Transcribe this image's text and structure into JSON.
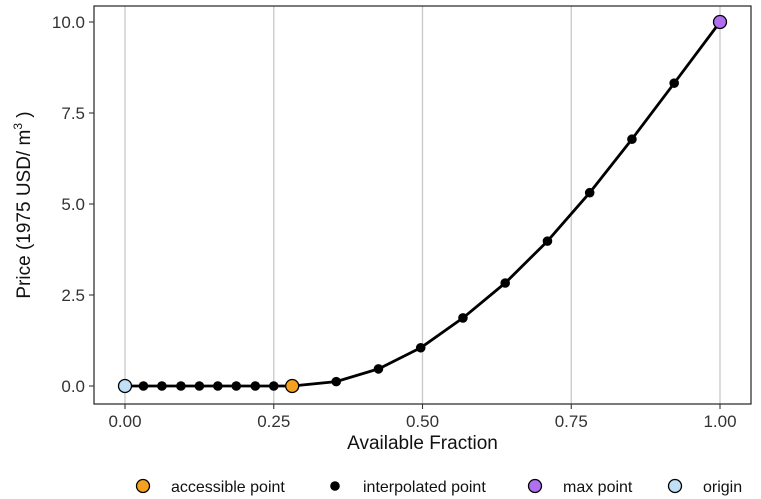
{
  "chart_data": {
    "type": "line",
    "xlabel": "Available Fraction",
    "ylabel": {
      "prefix": "Price (1975 USD/ m",
      "sup": "3",
      "suffix": " )"
    },
    "xlim": [
      0,
      1
    ],
    "ylim": [
      0,
      10
    ],
    "xticks": [
      {
        "value": 0.0,
        "label": "0.00"
      },
      {
        "value": 0.25,
        "label": "0.25"
      },
      {
        "value": 0.5,
        "label": "0.50"
      },
      {
        "value": 0.75,
        "label": "0.75"
      },
      {
        "value": 1.0,
        "label": "1.00"
      }
    ],
    "yticks": [
      {
        "value": 0.0,
        "label": "0.0"
      },
      {
        "value": 2.5,
        "label": "2.5"
      },
      {
        "value": 5.0,
        "label": "5.0"
      },
      {
        "value": 7.5,
        "label": "7.5"
      },
      {
        "value": 10.0,
        "label": "10.0"
      }
    ],
    "grid": {
      "vertical_major": true,
      "horizontal": false
    },
    "legend_position": "bottom",
    "line": {
      "x": [
        0.0,
        0.031,
        0.062,
        0.094,
        0.125,
        0.156,
        0.187,
        0.219,
        0.25,
        0.281,
        0.355,
        0.426,
        0.497,
        0.568,
        0.639,
        0.71,
        0.781,
        0.852,
        0.923,
        1.0
      ],
      "y": [
        0.0,
        0.0,
        0.0,
        0.0,
        0.0,
        0.0,
        0.0,
        0.0,
        0.0,
        0.0,
        0.12,
        0.47,
        1.05,
        1.87,
        2.83,
        3.98,
        5.31,
        6.78,
        8.32,
        10.0
      ],
      "color": "#000000"
    },
    "series": [
      {
        "name": "accessible point",
        "color": "#f5a020",
        "marker": "filled-circle-outlined",
        "points": [
          {
            "x": 0.281,
            "y": 0.0
          }
        ]
      },
      {
        "name": "interpolated point",
        "color": "#000000",
        "marker": "small-solid-circle",
        "points": [
          {
            "x": 0.031,
            "y": 0.0
          },
          {
            "x": 0.062,
            "y": 0.0
          },
          {
            "x": 0.094,
            "y": 0.0
          },
          {
            "x": 0.125,
            "y": 0.0
          },
          {
            "x": 0.156,
            "y": 0.0
          },
          {
            "x": 0.187,
            "y": 0.0
          },
          {
            "x": 0.219,
            "y": 0.0
          },
          {
            "x": 0.25,
            "y": 0.0
          },
          {
            "x": 0.355,
            "y": 0.12
          },
          {
            "x": 0.426,
            "y": 0.47
          },
          {
            "x": 0.497,
            "y": 1.05
          },
          {
            "x": 0.568,
            "y": 1.87
          },
          {
            "x": 0.639,
            "y": 2.83
          },
          {
            "x": 0.71,
            "y": 3.98
          },
          {
            "x": 0.781,
            "y": 5.31
          },
          {
            "x": 0.852,
            "y": 6.78
          },
          {
            "x": 0.923,
            "y": 8.32
          }
        ]
      },
      {
        "name": "max point",
        "color": "#b06ef0",
        "marker": "filled-circle-outlined",
        "points": [
          {
            "x": 1.0,
            "y": 10.0
          }
        ]
      },
      {
        "name": "origin",
        "color": "#bfe0f7",
        "marker": "filled-circle-outlined",
        "points": [
          {
            "x": 0.0,
            "y": 0.0
          }
        ]
      }
    ]
  }
}
